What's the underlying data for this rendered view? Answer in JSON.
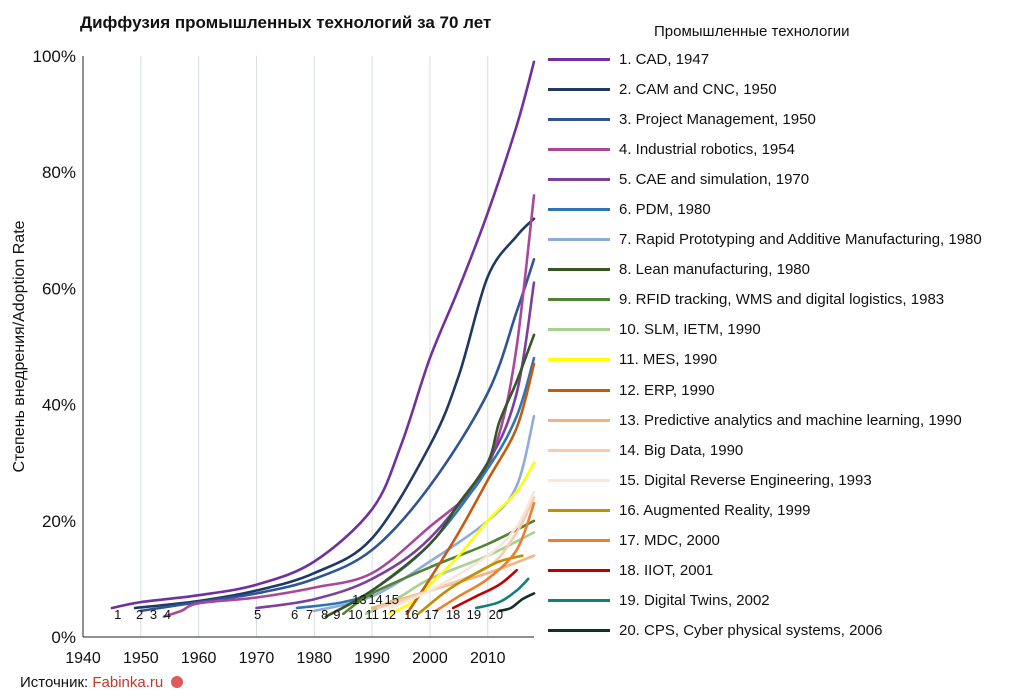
{
  "title": "Диффузия промышленных технологий за 70 лет",
  "source": {
    "label": "Источник:",
    "link": "Fabinka.ru"
  },
  "legend_title": "Промышленные технологии",
  "chart_data": {
    "type": "line",
    "title": "Диффузия промышленных технологий за 70 лет",
    "xlabel": "",
    "ylabel": "Степень внедрения/Adoption Rate",
    "xlim": [
      1940,
      2018
    ],
    "ylim": [
      0,
      100
    ],
    "x_ticks": [
      "1940",
      "1950",
      "1960",
      "1970",
      "1980",
      "1990",
      "2000",
      "2010"
    ],
    "y_ticks": [
      "0%",
      "20%",
      "40%",
      "60%",
      "80%",
      "100%"
    ],
    "grid": "vertical",
    "legend_position": "right",
    "series": [
      {
        "name": "1. CAD, 1947",
        "label": "1",
        "color": "#7030a0",
        "points": [
          [
            1945,
            5
          ],
          [
            1950,
            6
          ],
          [
            1960,
            7.2
          ],
          [
            1970,
            9
          ],
          [
            1980,
            13
          ],
          [
            1990,
            22
          ],
          [
            1995,
            33
          ],
          [
            2000,
            48
          ],
          [
            2005,
            60
          ],
          [
            2010,
            73
          ],
          [
            2015,
            88
          ],
          [
            2018,
            99
          ]
        ]
      },
      {
        "name": "2. CAM and CNC, 1950",
        "label": "2",
        "color": "#1f3864",
        "points": [
          [
            1949,
            5
          ],
          [
            1960,
            6.2
          ],
          [
            1970,
            8
          ],
          [
            1980,
            11
          ],
          [
            1990,
            17
          ],
          [
            2000,
            33
          ],
          [
            2005,
            45
          ],
          [
            2010,
            62
          ],
          [
            2015,
            69
          ],
          [
            2018,
            72
          ]
        ]
      },
      {
        "name": "3. Project Management, 1950",
        "label": "3",
        "color": "#2f5597",
        "points": [
          [
            1950,
            4.5
          ],
          [
            1960,
            6
          ],
          [
            1970,
            7.5
          ],
          [
            1980,
            10
          ],
          [
            1990,
            15
          ],
          [
            2000,
            26
          ],
          [
            2010,
            42
          ],
          [
            2015,
            56
          ],
          [
            2018,
            65
          ]
        ]
      },
      {
        "name": "4. Industrial robotics, 1954",
        "label": "4",
        "color": "#a9479b",
        "points": [
          [
            1954,
            3.5
          ],
          [
            1957,
            4.5
          ],
          [
            1960,
            5.8
          ],
          [
            1970,
            6.8
          ],
          [
            1980,
            8.5
          ],
          [
            1990,
            11
          ],
          [
            2000,
            19
          ],
          [
            2008,
            26
          ],
          [
            2012,
            35
          ],
          [
            2015,
            50
          ],
          [
            2018,
            76
          ]
        ]
      },
      {
        "name": "5. CAE and simulation, 1970",
        "label": "5",
        "color": "#7b3fa0",
        "points": [
          [
            1970,
            5
          ],
          [
            1980,
            6.5
          ],
          [
            1990,
            10
          ],
          [
            2000,
            17
          ],
          [
            2010,
            30
          ],
          [
            2015,
            42
          ],
          [
            2018,
            61
          ]
        ]
      },
      {
        "name": "6. PDM, 1980",
        "label": "6",
        "color": "#2e75b6",
        "points": [
          [
            1977,
            5
          ],
          [
            1985,
            6
          ],
          [
            1990,
            8
          ],
          [
            2000,
            16
          ],
          [
            2010,
            29
          ],
          [
            2015,
            38
          ],
          [
            2018,
            48
          ]
        ]
      },
      {
        "name": "7. Rapid Prototyping and Additive Manufacturing, 1980",
        "label": "7",
        "color": "#8faadc",
        "points": [
          [
            1980,
            4.5
          ],
          [
            1990,
            7
          ],
          [
            2000,
            13
          ],
          [
            2010,
            20
          ],
          [
            2015,
            26
          ],
          [
            2018,
            38
          ]
        ]
      },
      {
        "name": "8. Lean manufacturing, 1980",
        "label": "8",
        "color": "#375623",
        "points": [
          [
            1982,
            3.5
          ],
          [
            1990,
            8
          ],
          [
            2000,
            16
          ],
          [
            2005,
            23
          ],
          [
            2010,
            30
          ],
          [
            2012,
            37
          ],
          [
            2015,
            44
          ],
          [
            2018,
            52
          ]
        ]
      },
      {
        "name": "9. RFID tracking, WMS and digital logistics, 1983",
        "label": "9",
        "color": "#548235",
        "points": [
          [
            1985,
            4
          ],
          [
            1990,
            7.5
          ],
          [
            2000,
            12
          ],
          [
            2010,
            16
          ],
          [
            2018,
            20
          ]
        ]
      },
      {
        "name": "10. SLM, IETM, 1990",
        "label": "10",
        "color": "#a9d08e",
        "points": [
          [
            1989,
            4
          ],
          [
            1995,
            7
          ],
          [
            2000,
            10
          ],
          [
            2010,
            14
          ],
          [
            2018,
            18
          ]
        ]
      },
      {
        "name": "11. MES, 1990",
        "label": "11",
        "color": "#ffff00",
        "points": [
          [
            1993,
            4
          ],
          [
            1997,
            6
          ],
          [
            2000,
            9
          ],
          [
            2005,
            14
          ],
          [
            2010,
            20
          ],
          [
            2015,
            25
          ],
          [
            2018,
            30
          ]
        ]
      },
      {
        "name": "12. ERP, 1990",
        "label": "12",
        "color": "#c55a11",
        "points": [
          [
            1996,
            4
          ],
          [
            2000,
            10
          ],
          [
            2005,
            18
          ],
          [
            2010,
            27
          ],
          [
            2015,
            36
          ],
          [
            2018,
            47
          ]
        ]
      },
      {
        "name": "13. Predictive analytics and machine learning, 1990",
        "label": "13",
        "color": "#f4b183",
        "points": [
          [
            1990,
            5
          ],
          [
            1995,
            6.5
          ],
          [
            2000,
            8
          ],
          [
            2010,
            11
          ],
          [
            2018,
            14
          ]
        ]
      },
      {
        "name": "14. Big Data, 1990",
        "label": "14",
        "color": "#f8cbad",
        "points": [
          [
            1991,
            5
          ],
          [
            2000,
            8
          ],
          [
            2010,
            12
          ],
          [
            2015,
            18
          ],
          [
            2018,
            24
          ]
        ]
      },
      {
        "name": "15. Digital Reverse Engineering, 1993",
        "label": "15",
        "color": "#fbe5d6",
        "points": [
          [
            1993,
            5
          ],
          [
            2000,
            8
          ],
          [
            2010,
            14
          ],
          [
            2015,
            19
          ],
          [
            2018,
            25
          ]
        ]
      },
      {
        "name": "16. Augmented Reality, 1999",
        "label": "16",
        "color": "#bf9000",
        "points": [
          [
            1998,
            4
          ],
          [
            2003,
            8
          ],
          [
            2008,
            11
          ],
          [
            2012,
            13
          ],
          [
            2016,
            14
          ]
        ]
      },
      {
        "name": "17. MDC, 2000",
        "label": "17",
        "color": "#ed7d31",
        "points": [
          [
            2001,
            4.5
          ],
          [
            2005,
            7
          ],
          [
            2010,
            10
          ],
          [
            2015,
            15
          ],
          [
            2018,
            23
          ]
        ]
      },
      {
        "name": "18. IIOT, 2001",
        "label": "18",
        "color": "#c00000",
        "points": [
          [
            2004,
            5
          ],
          [
            2008,
            7
          ],
          [
            2012,
            9
          ],
          [
            2015,
            11.5
          ]
        ]
      },
      {
        "name": "19. Digital Twins, 2002",
        "label": "19",
        "color": "#138078",
        "points": [
          [
            2008,
            5
          ],
          [
            2012,
            6
          ],
          [
            2015,
            8
          ],
          [
            2017,
            10
          ]
        ]
      },
      {
        "name": "20. CPS, Cyber physical systems, 2006",
        "label": "20",
        "color": "#0d3326",
        "points": [
          [
            2012,
            4.5
          ],
          [
            2014,
            5
          ],
          [
            2016,
            6.5
          ],
          [
            2018,
            7.5
          ]
        ]
      }
    ]
  }
}
